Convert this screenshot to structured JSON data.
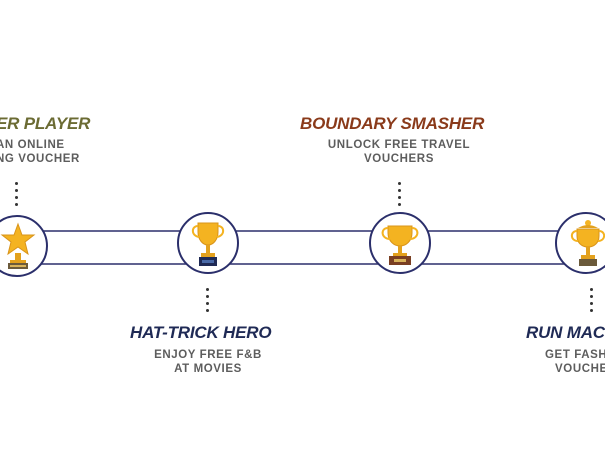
{
  "milestones": [
    {
      "title": "ER PLAYER",
      "desc_line1": "AN ONLINE",
      "desc_line2": "NG VOUCHER",
      "title_color": "#6b6b33",
      "icon": "star-trophy-icon"
    },
    {
      "title": "HAT-TRICK HERO",
      "desc_line1": "ENJOY FREE F&B",
      "desc_line2": "AT MOVIES",
      "title_color": "#1f2a55",
      "icon": "cup-trophy-blue-base-icon"
    },
    {
      "title": "BOUNDARY SMASHER",
      "desc_line1": "UNLOCK FREE TRAVEL",
      "desc_line2": "VOUCHERS",
      "title_color": "#8a3a1a",
      "icon": "cup-trophy-brown-base-icon"
    },
    {
      "title": "RUN MAC",
      "desc_line1": "GET FASH",
      "desc_line2": "VOUCHE",
      "title_color": "#1f2a55",
      "icon": "lidded-trophy-icon"
    }
  ],
  "colors": {
    "track_border": "#2b2f6b",
    "desc_text": "#5d5d5d",
    "gold": "#f4b321"
  }
}
